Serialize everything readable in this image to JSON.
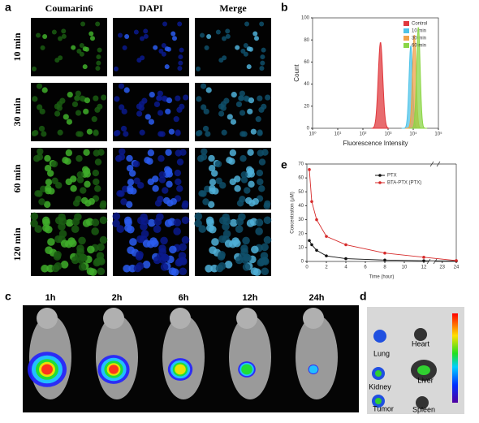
{
  "figure": {
    "panel_labels": [
      "a",
      "b",
      "c",
      "d",
      "e"
    ],
    "a": {
      "columns": [
        "Coumarin6",
        "DAPI",
        "Merge"
      ],
      "rows": [
        "10 min",
        "30 min",
        "60 min",
        "120 min"
      ]
    },
    "c": {
      "times": [
        "1h",
        "2h",
        "6h",
        "12h",
        "24h"
      ]
    },
    "d": {
      "organs": [
        "Lung",
        "Heart",
        "Kidney",
        "Liver",
        "Tumor",
        "Spleen"
      ]
    }
  },
  "chart_data": [
    {
      "type": "histogram",
      "ylabel": "Count",
      "xlabel": "Fluorescence Intensity",
      "log_x": true,
      "xlim": [
        1,
        100000
      ],
      "xticks": [
        {
          "value": 1,
          "label": "10⁰"
        },
        {
          "value": 10,
          "label": "10¹"
        },
        {
          "value": 100,
          "label": "10²"
        },
        {
          "value": 1000,
          "label": "10³"
        },
        {
          "value": 10000,
          "label": "10⁴"
        },
        {
          "value": 100000,
          "label": "10⁵"
        }
      ],
      "ylim": [
        0,
        100
      ],
      "yticks": [
        0,
        20,
        40,
        60,
        80,
        100
      ],
      "series": [
        {
          "name": "Control",
          "color": "#e0393e",
          "peak": 500,
          "height": 78
        },
        {
          "name": "10 min",
          "color": "#4fc3e8",
          "peak": 8000,
          "height": 75
        },
        {
          "name": "30 min",
          "color": "#f0a24a",
          "peak": 11000,
          "height": 85
        },
        {
          "name": "60 min",
          "color": "#8bd646",
          "peak": 16000,
          "height": 92
        }
      ]
    },
    {
      "type": "line",
      "ylabel": "Concentration (μM)",
      "xlabel": "Time (hour)",
      "axis_break": [
        12.5,
        22.5
      ],
      "xlim": [
        0,
        24
      ],
      "xticks": [
        0,
        2,
        4,
        6,
        8,
        10,
        12,
        23,
        24
      ],
      "ylim": [
        0,
        70
      ],
      "yticks": [
        0,
        10,
        20,
        30,
        40,
        50,
        60,
        70
      ],
      "x": [
        0.25,
        0.5,
        1,
        2,
        4,
        8,
        12,
        24
      ],
      "series": [
        {
          "name": "PTX",
          "color": "#111111",
          "values": [
            15,
            12,
            8,
            4,
            2,
            1,
            0.5,
            0.3
          ]
        },
        {
          "name": "BTA-PTX (PTX)",
          "color": "#d62b2b",
          "values": [
            66,
            43,
            30,
            18,
            12,
            6,
            3,
            0.6
          ]
        }
      ]
    }
  ]
}
